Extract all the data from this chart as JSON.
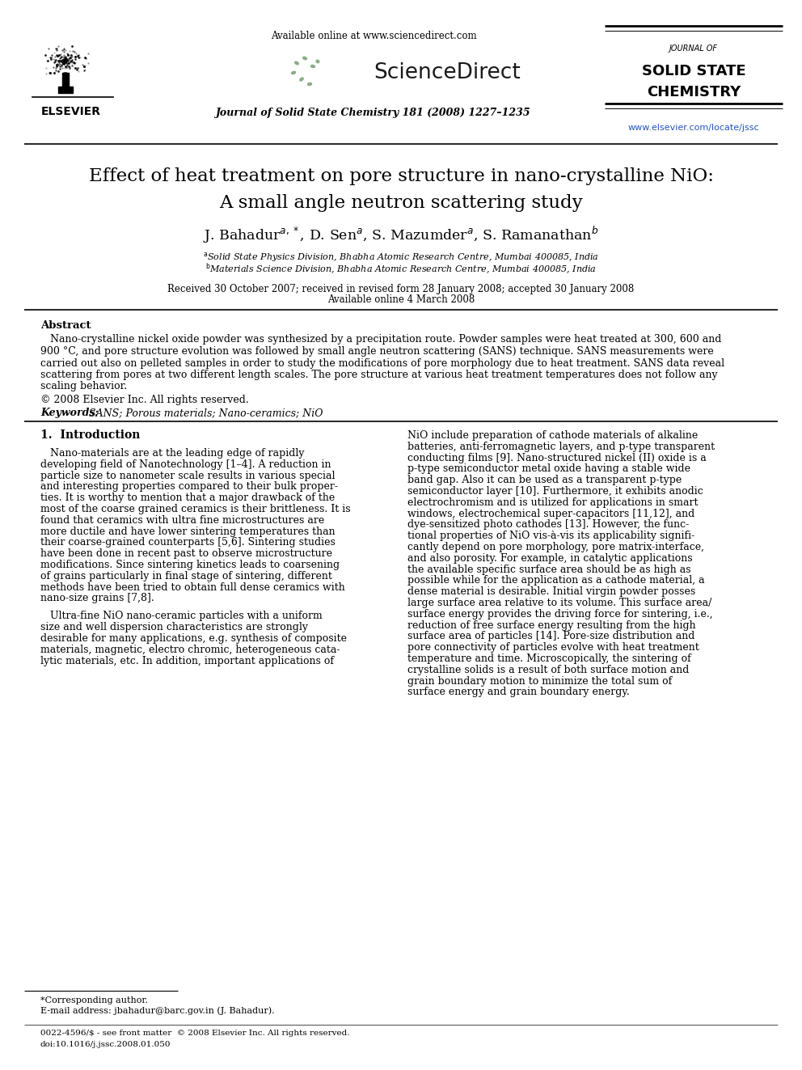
{
  "bg_color": "#ffffff",
  "available_online": "Available online at www.sciencedirect.com",
  "journal_name_line1": "Journal of Solid State Chemistry 181 (2008) 1227–1235",
  "journal_box_line1": "JOURNAL OF",
  "journal_box_line2": "SOLID STATE",
  "journal_box_line3": "CHEMISTRY",
  "url": "www.elsevier.com/locate/jssc",
  "title_line1": "Effect of heat treatment on pore structure in nano-crystalline NiO:",
  "title_line2": "A small angle neutron scattering study",
  "dates_line1": "Received 30 October 2007; received in revised form 28 January 2008; accepted 30 January 2008",
  "dates_line2": "Available online 4 March 2008",
  "abstract_title": "Abstract",
  "abstract_text_lines": [
    "   Nano-crystalline nickel oxide powder was synthesized by a precipitation route. Powder samples were heat treated at 300, 600 and",
    "900 °C, and pore structure evolution was followed by small angle neutron scattering (SANS) technique. SANS measurements were",
    "carried out also on pelleted samples in order to study the modifications of pore morphology due to heat treatment. SANS data reveal",
    "scattering from pores at two different length scales. The pore structure at various heat treatment temperatures does not follow any",
    "scaling behavior."
  ],
  "copyright": "© 2008 Elsevier Inc. All rights reserved.",
  "keywords_bold": "Keywords:",
  "keywords_rest": " SANS; Porous materials; Nano-ceramics; NiO",
  "section1_title": "1.  Introduction",
  "section1_left_lines": [
    "   Nano-materials are at the leading edge of rapidly",
    "developing field of Nanotechnology [1–4]. A reduction in",
    "particle size to nanometer scale results in various special",
    "and interesting properties compared to their bulk proper-",
    "ties. It is worthy to mention that a major drawback of the",
    "most of the coarse grained ceramics is their brittleness. It is",
    "found that ceramics with ultra fine microstructures are",
    "more ductile and have lower sintering temperatures than",
    "their coarse-grained counterparts [5,6]. Sintering studies",
    "have been done in recent past to observe microstructure",
    "modifications. Since sintering kinetics leads to coarsening",
    "of grains particularly in final stage of sintering, different",
    "methods have been tried to obtain full dense ceramics with",
    "nano-size grains [7,8].",
    "",
    "   Ultra-fine NiO nano-ceramic particles with a uniform",
    "size and well dispersion characteristics are strongly",
    "desirable for many applications, e.g. synthesis of composite",
    "materials, magnetic, electro chromic, heterogeneous cata-",
    "lytic materials, etc. In addition, important applications of"
  ],
  "section1_right_lines": [
    "NiO include preparation of cathode materials of alkaline",
    "batteries, anti-ferromagnetic layers, and p-type transparent",
    "conducting films [9]. Nano-structured nickel (II) oxide is a",
    "p-type semiconductor metal oxide having a stable wide",
    "band gap. Also it can be used as a transparent p-type",
    "semiconductor layer [10]. Furthermore, it exhibits anodic",
    "electrochromism and is utilized for applications in smart",
    "windows, electrochemical super-capacitors [11,12], and",
    "dye-sensitized photo cathodes [13]. However, the func-",
    "tional properties of NiO vis-à-vis its applicability signifi-",
    "cantly depend on pore morphology, pore matrix-interface,",
    "and also porosity. For example, in catalytic applications",
    "the available specific surface area should be as high as",
    "possible while for the application as a cathode material, a",
    "dense material is desirable. Initial virgin powder posses",
    "large surface area relative to its volume. This surface area/",
    "surface energy provides the driving force for sintering, i.e.,",
    "reduction of free surface energy resulting from the high",
    "surface area of particles [14]. Pore-size distribution and",
    "pore connectivity of particles evolve with heat treatment",
    "temperature and time. Microscopically, the sintering of",
    "crystalline solids is a result of both surface motion and",
    "grain boundary motion to minimize the total sum of",
    "surface energy and grain boundary energy."
  ],
  "footer_star": "*Corresponding author.",
  "footer_email": "E-mail address: jbahadur@barc.gov.in (J. Bahadur).",
  "footer_bottom1": "0022-4596/$ - see front matter  © 2008 Elsevier Inc. All rights reserved.",
  "footer_bottom2": "doi:10.1016/j.jssc.2008.01.050",
  "elsevier_text": "ELSEVIER",
  "sciencedirect_text": "ScienceDirect"
}
